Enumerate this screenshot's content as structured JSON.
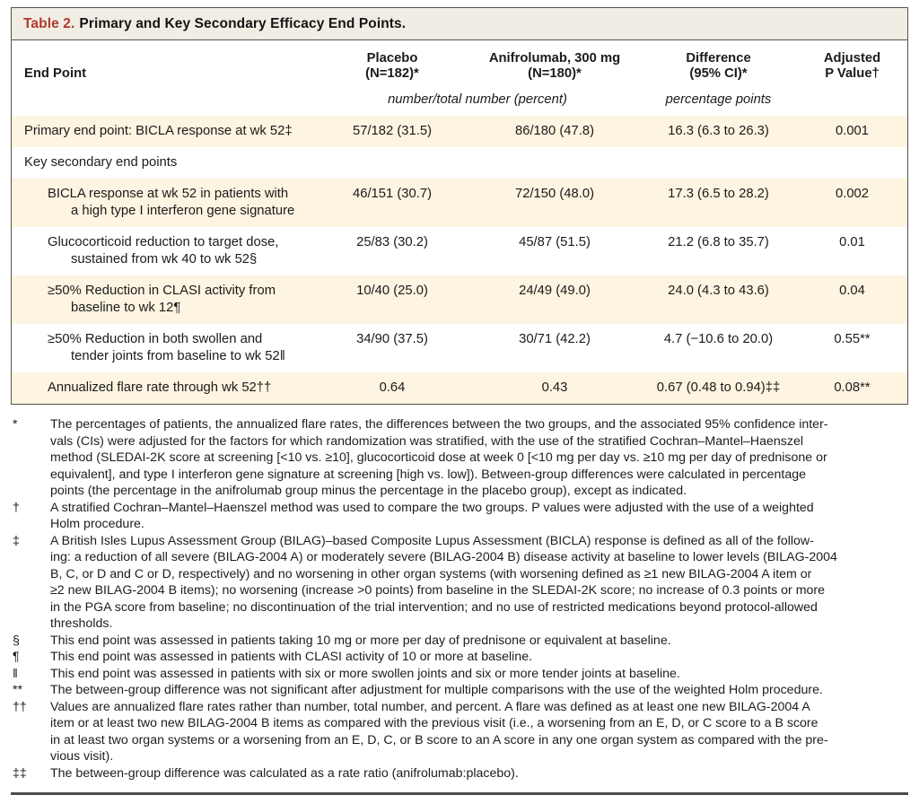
{
  "title": {
    "label": "Table 2.",
    "text": "Primary and Key Secondary Efficacy End Points."
  },
  "colors": {
    "accent_red": "#ae3a30",
    "title_bar_bg": "#f1ede4",
    "row_shade": "#fdf4e1",
    "border": "#56524b"
  },
  "table": {
    "columns": [
      {
        "id": "end-point",
        "lines": [
          "End Point"
        ]
      },
      {
        "id": "placebo",
        "lines": [
          "Placebo",
          "(N=182)*"
        ]
      },
      {
        "id": "anifrolumab",
        "lines": [
          "Anifrolumab, 300 mg",
          "(N=180)*"
        ]
      },
      {
        "id": "difference",
        "lines": [
          "Difference",
          "(95% CI)*"
        ]
      },
      {
        "id": "p-value",
        "lines": [
          "Adjusted",
          "P Value†"
        ]
      }
    ],
    "units": {
      "counts": "number/total number (percent)",
      "difference": "percentage points"
    },
    "rows": [
      {
        "label_lines": [
          "Primary end point: BICLA response at wk 52‡"
        ],
        "indent": 0,
        "shaded": true,
        "placebo": "57/182 (31.5)",
        "anifrolumab": "86/180 (47.8)",
        "difference": "16.3 (6.3 to 26.3)",
        "p_value": "0.001"
      },
      {
        "label_lines": [
          "Key secondary end points"
        ],
        "indent": 0,
        "shaded": false,
        "placebo": "",
        "anifrolumab": "",
        "difference": "",
        "p_value": ""
      },
      {
        "label_lines": [
          "BICLA response at wk 52 in patients with",
          "a high type I interferon gene signature"
        ],
        "indent": 1,
        "shaded": true,
        "placebo": "46/151 (30.7)",
        "anifrolumab": "72/150 (48.0)",
        "difference": "17.3 (6.5 to 28.2)",
        "p_value": "0.002"
      },
      {
        "label_lines": [
          "Glucocorticoid reduction to target dose,",
          "sustained from wk 40 to wk 52§"
        ],
        "indent": 1,
        "shaded": false,
        "placebo": "25/83 (30.2)",
        "anifrolumab": "45/87 (51.5)",
        "difference": "21.2 (6.8 to 35.7)",
        "p_value": "0.01"
      },
      {
        "label_lines": [
          "≥50% Reduction in CLASI activity from",
          "baseline to wk 12¶"
        ],
        "indent": 1,
        "shaded": true,
        "placebo": "10/40 (25.0)",
        "anifrolumab": "24/49 (49.0)",
        "difference": "24.0 (4.3 to 43.6)",
        "p_value": "0.04"
      },
      {
        "label_lines": [
          "≥50% Reduction in both swollen and",
          "tender joints from baseline to wk 52‖"
        ],
        "indent": 1,
        "shaded": false,
        "placebo": "34/90 (37.5)",
        "anifrolumab": "30/71 (42.2)",
        "difference": "4.7 (−10.6 to 20.0)",
        "p_value": "0.55**"
      },
      {
        "label_lines": [
          "Annualized flare rate through wk 52††"
        ],
        "indent": 1,
        "shaded": true,
        "placebo": "0.64",
        "anifrolumab": "0.43",
        "difference": "0.67 (0.48 to 0.94)‡‡",
        "p_value": "0.08**"
      }
    ]
  },
  "footnotes": [
    {
      "marker": "*",
      "lines": [
        "The percentages of patients, the annualized flare rates, the differences between the two groups, and the associated 95% confidence inter-",
        "vals (CIs) were adjusted for the factors for which randomization was stratified, with the use of the stratified Cochran–Mantel–Haenszel",
        "method (SLEDAI-2K score at screening [<10 vs. ≥10], glucocorticoid dose at week 0 [<10 mg per day vs. ≥10 mg per day of prednisone or",
        "equivalent], and type I interferon gene signature at screening [high vs. low]). Between-group differences were calculated in percentage",
        "points (the percentage in the anifrolumab group minus the percentage in the placebo group), except as indicated."
      ]
    },
    {
      "marker": "†",
      "lines": [
        "A stratified Cochran–Mantel–Haenszel method was used to compare the two groups. P values were adjusted with the use of a weighted",
        "Holm procedure."
      ]
    },
    {
      "marker": "‡",
      "lines": [
        "A British Isles Lupus Assessment Group (BILAG)–based Composite Lupus Assessment (BICLA) response is defined as all of the follow-",
        "ing: a reduction of all severe (BILAG-2004 A) or moderately severe (BILAG-2004 B) disease activity at baseline to lower levels (BILAG-2004",
        "B, C, or D and C or D, respectively) and no worsening in other organ systems (with worsening defined as ≥1 new BILAG-2004 A item or",
        "≥2 new BILAG-2004 B items); no worsening (increase >0 points) from baseline in the SLEDAI-2K score; no increase of 0.3 points or more",
        "in the PGA score from baseline; no discontinuation of the trial intervention; and no use of restricted medications beyond protocol-allowed",
        "thresholds."
      ]
    },
    {
      "marker": "§",
      "lines": [
        "This end point was assessed in patients taking 10 mg or more per day of prednisone or equivalent at baseline."
      ]
    },
    {
      "marker": "¶",
      "lines": [
        "This end point was assessed in patients with CLASI activity of 10 or more at baseline."
      ]
    },
    {
      "marker": "‖",
      "lines": [
        "This end point was assessed in patients with six or more swollen joints and six or more tender joints at baseline."
      ]
    },
    {
      "marker": "**",
      "lines": [
        "The between-group difference was not significant after adjustment for multiple comparisons with the use of the weighted Holm procedure."
      ]
    },
    {
      "marker": "††",
      "lines": [
        "Values are annualized flare rates rather than number, total number, and percent. A flare was defined as at least one new BILAG-2004 A",
        "item or at least two new BILAG-2004 B items as compared with the previous visit (i.e., a worsening from an E, D, or C score to a B score",
        "in at least two organ systems or a worsening from an E, D, C, or B score to an A score in any one organ system as compared with the pre-",
        "vious visit)."
      ]
    },
    {
      "marker": "‡‡",
      "lines": [
        "The between-group difference was calculated as a rate ratio (anifrolumab:placebo)."
      ]
    }
  ]
}
